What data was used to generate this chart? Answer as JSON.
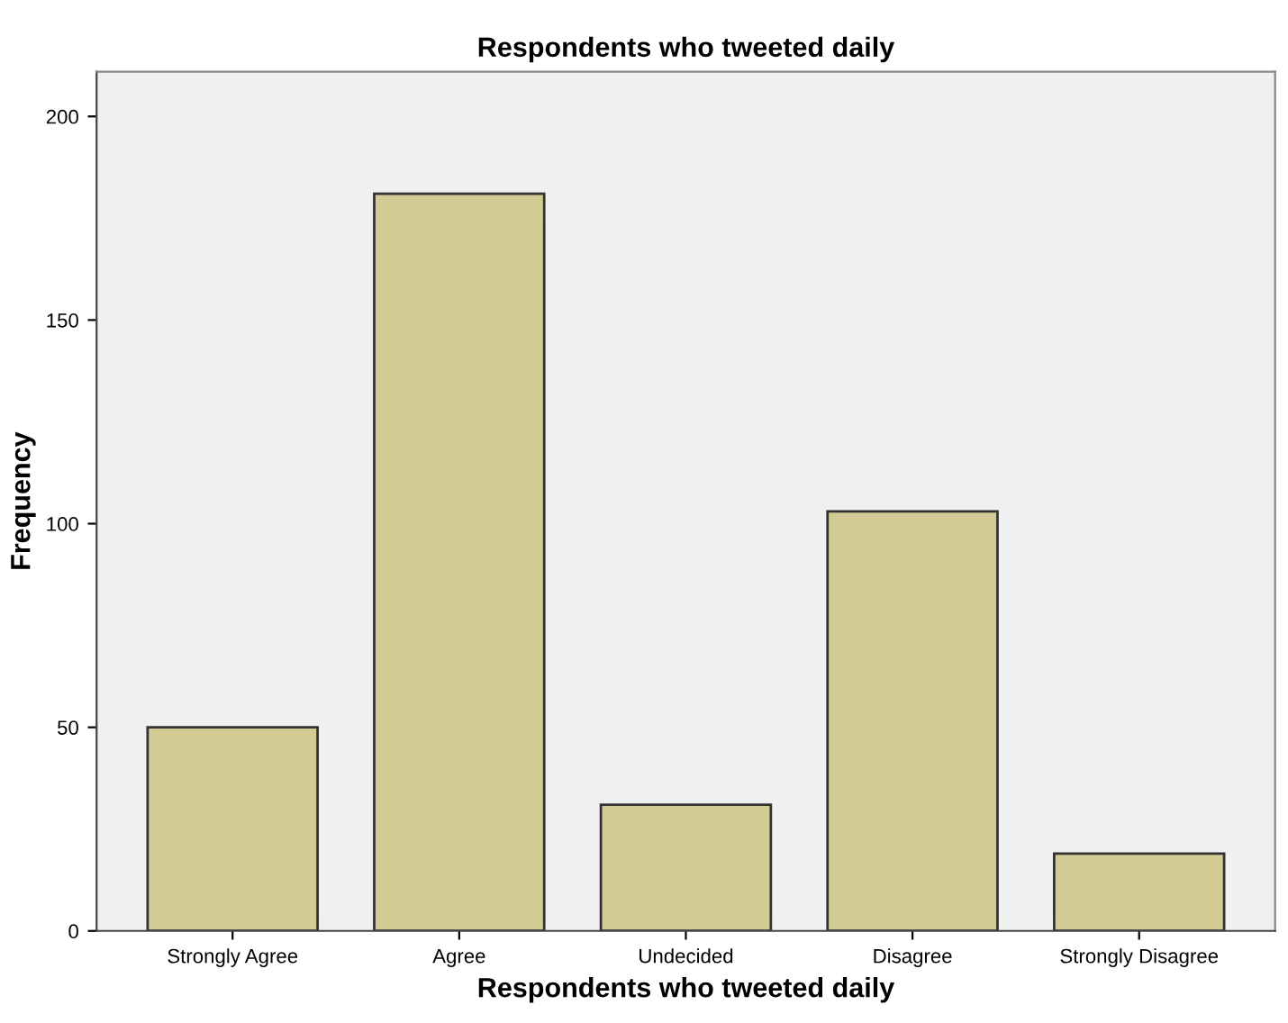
{
  "chart_data": {
    "type": "bar",
    "title": "Respondents who tweeted daily",
    "xlabel": "Respondents who tweeted daily",
    "ylabel": "Frequency",
    "categories": [
      "Strongly Agree",
      "Agree",
      "Undecided",
      "Disagree",
      "Strongly Disagree"
    ],
    "values": [
      50,
      181,
      31,
      103,
      19
    ],
    "color": "#d2cc94",
    "ylim": [
      0,
      211
    ],
    "yticks": [
      0,
      50,
      100,
      150,
      200
    ],
    "grid": false,
    "legend": false
  }
}
